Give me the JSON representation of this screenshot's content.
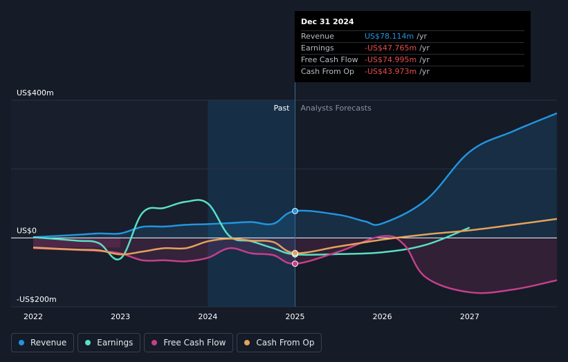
{
  "tooltip": {
    "date": "Dec 31 2024",
    "rows": [
      {
        "label": "Revenue",
        "value": "US$78.114m",
        "unit": "/yr",
        "color": "#2394df"
      },
      {
        "label": "Earnings",
        "value": "-US$47.765m",
        "unit": "/yr",
        "color": "#e64d4d"
      },
      {
        "label": "Free Cash Flow",
        "value": "-US$74.995m",
        "unit": "/yr",
        "color": "#e64d4d"
      },
      {
        "label": "Cash From Op",
        "value": "-US$43.973m",
        "unit": "/yr",
        "color": "#e64d4d"
      }
    ]
  },
  "legend": [
    {
      "label": "Revenue",
      "color": "#2394df"
    },
    {
      "label": "Earnings",
      "color": "#58e0c5"
    },
    {
      "label": "Free Cash Flow",
      "color": "#c5408a"
    },
    {
      "label": "Cash From Op",
      "color": "#e5a35a"
    }
  ],
  "chart_data": {
    "type": "line",
    "ylim": [
      -200,
      400
    ],
    "xlim": [
      2022,
      2028
    ],
    "y_tick_labels": [
      {
        "value": 400,
        "label": "US$400m"
      },
      {
        "value": 0,
        "label": "US$0"
      },
      {
        "value": -200,
        "label": "-US$200m"
      }
    ],
    "x_ticks": [
      2022,
      2023,
      2024,
      2025,
      2026,
      2027
    ],
    "x_tick_labels": [
      "2022",
      "2023",
      "2024",
      "2025",
      "2026",
      "2027"
    ],
    "past_label": "Past",
    "forecast_label": "Analysts Forecasts",
    "divider_x": 2025,
    "highlight_range": [
      2024,
      2025
    ],
    "series": [
      {
        "name": "Revenue",
        "color": "#2394df",
        "x": [
          2022,
          2022.5,
          2022.75,
          2023,
          2023.25,
          2023.5,
          2023.75,
          2024,
          2024.25,
          2024.5,
          2024.75,
          2025,
          2025.5,
          2025.8,
          2026,
          2026.5,
          2027,
          2027.5,
          2028
        ],
        "values": [
          2,
          9,
          13,
          13,
          32,
          33,
          38,
          40,
          43,
          46,
          41,
          78,
          67,
          48,
          42,
          110,
          250,
          310,
          362
        ]
      },
      {
        "name": "Earnings",
        "color": "#58e0c5",
        "x": [
          2022,
          2022.5,
          2022.75,
          2023,
          2023.25,
          2023.5,
          2023.75,
          2024,
          2024.25,
          2024.5,
          2024.75,
          2025,
          2025.5,
          2026,
          2026.5,
          2027
        ],
        "values": [
          2,
          -8,
          -15,
          -60,
          72,
          87,
          105,
          100,
          5,
          -10,
          -30,
          -48,
          -47,
          -42,
          -20,
          30
        ]
      },
      {
        "name": "Free Cash Flow",
        "color": "#c5408a",
        "x": [
          2022,
          2022.5,
          2022.75,
          2023,
          2023.25,
          2023.5,
          2023.75,
          2024,
          2024.25,
          2024.5,
          2024.75,
          2025,
          2025.5,
          2026,
          2026.25,
          2026.5,
          2027,
          2027.5,
          2028
        ],
        "values": [
          -30,
          -35,
          -38,
          -45,
          -65,
          -65,
          -68,
          -58,
          -30,
          -45,
          -50,
          -75,
          -40,
          5,
          -20,
          -115,
          -158,
          -150,
          -123
        ]
      },
      {
        "name": "Cash From Op",
        "color": "#e5a35a",
        "x": [
          2022,
          2022.5,
          2022.75,
          2023,
          2023.25,
          2023.5,
          2023.75,
          2024,
          2024.25,
          2024.5,
          2024.75,
          2025,
          2025.5,
          2026,
          2026.5,
          2027,
          2027.5,
          2028
        ],
        "values": [
          -28,
          -34,
          -36,
          -48,
          -40,
          -30,
          -30,
          -10,
          -2,
          -8,
          -12,
          -44,
          -25,
          -5,
          10,
          22,
          38,
          55
        ]
      }
    ],
    "markers_at_x": 2025
  }
}
